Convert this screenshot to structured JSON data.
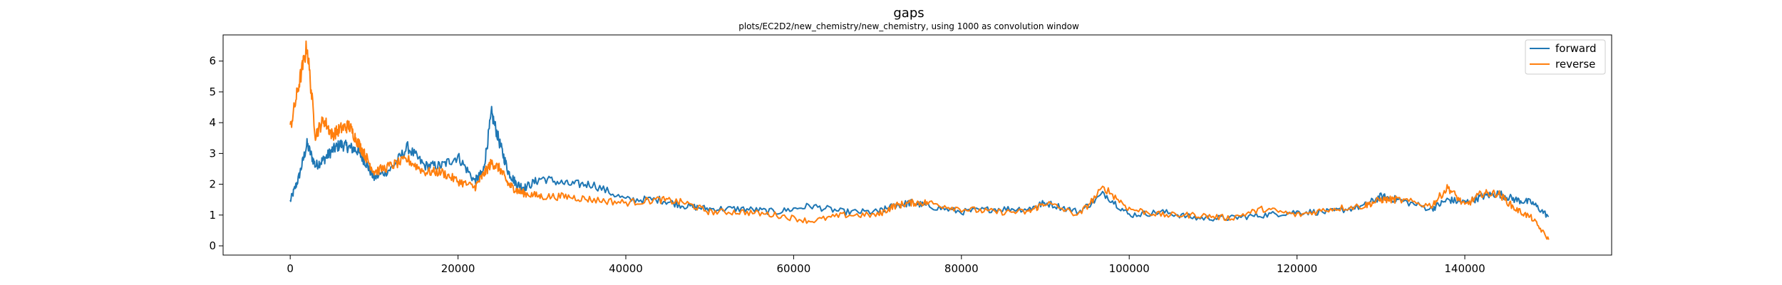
{
  "chart_data": {
    "type": "line",
    "title": "gaps",
    "subtitle": "plots/EC2D2/new_chemistry/new_chemistry, using 1000 as convolution window",
    "xlabel": "",
    "ylabel": "",
    "xlim": [
      -8000,
      157500
    ],
    "ylim": [
      -0.3,
      6.85
    ],
    "xticks": [
      0,
      20000,
      40000,
      60000,
      80000,
      100000,
      120000,
      140000
    ],
    "yticks": [
      0,
      1,
      2,
      3,
      4,
      5,
      6
    ],
    "grid": false,
    "legend_position": "top-right",
    "x": [
      0,
      1000,
      2000,
      3000,
      4000,
      5000,
      6000,
      7000,
      8000,
      9000,
      10000,
      12000,
      14000,
      16000,
      18000,
      20000,
      22000,
      23000,
      24000,
      25000,
      26000,
      27000,
      28000,
      30000,
      33000,
      36000,
      40000,
      44000,
      47000,
      50000,
      54000,
      58000,
      62000,
      66000,
      70000,
      72000,
      74000,
      76000,
      80000,
      84000,
      88000,
      90000,
      94000,
      97000,
      100000,
      104000,
      108000,
      112000,
      116000,
      120000,
      124000,
      128000,
      130000,
      132000,
      136000,
      138000,
      140000,
      142000,
      144000,
      146000,
      148000,
      150000
    ],
    "series": [
      {
        "name": "forward",
        "color": "#1f77b4",
        "values": [
          1.45,
          2.2,
          3.3,
          2.6,
          2.8,
          3.1,
          3.3,
          3.2,
          3.1,
          2.7,
          2.2,
          2.5,
          3.2,
          2.6,
          2.6,
          2.9,
          2.1,
          2.4,
          4.3,
          3.3,
          2.4,
          2.0,
          1.9,
          2.2,
          2.0,
          2.0,
          1.5,
          1.5,
          1.3,
          1.2,
          1.2,
          1.1,
          1.3,
          1.1,
          1.1,
          1.3,
          1.4,
          1.3,
          1.1,
          1.2,
          1.2,
          1.4,
          1.1,
          1.7,
          1.0,
          1.1,
          0.9,
          0.9,
          1.0,
          1.1,
          1.1,
          1.3,
          1.6,
          1.5,
          1.2,
          1.5,
          1.4,
          1.6,
          1.7,
          1.5,
          1.4,
          0.95
        ]
      },
      {
        "name": "reverse",
        "color": "#ff7f0e",
        "values": [
          3.8,
          5.2,
          6.5,
          3.6,
          4.1,
          3.6,
          3.8,
          3.9,
          3.4,
          2.9,
          2.4,
          2.6,
          2.8,
          2.4,
          2.4,
          2.1,
          1.9,
          2.3,
          2.7,
          2.5,
          2.0,
          1.8,
          1.7,
          1.6,
          1.6,
          1.5,
          1.4,
          1.5,
          1.4,
          1.1,
          1.1,
          1.0,
          0.8,
          1.0,
          1.0,
          1.3,
          1.4,
          1.4,
          1.2,
          1.1,
          1.1,
          1.4,
          1.0,
          1.9,
          1.2,
          1.0,
          1.0,
          0.9,
          1.2,
          1.0,
          1.2,
          1.3,
          1.5,
          1.5,
          1.3,
          1.9,
          1.3,
          1.7,
          1.7,
          1.2,
          0.9,
          0.2
        ]
      }
    ]
  }
}
